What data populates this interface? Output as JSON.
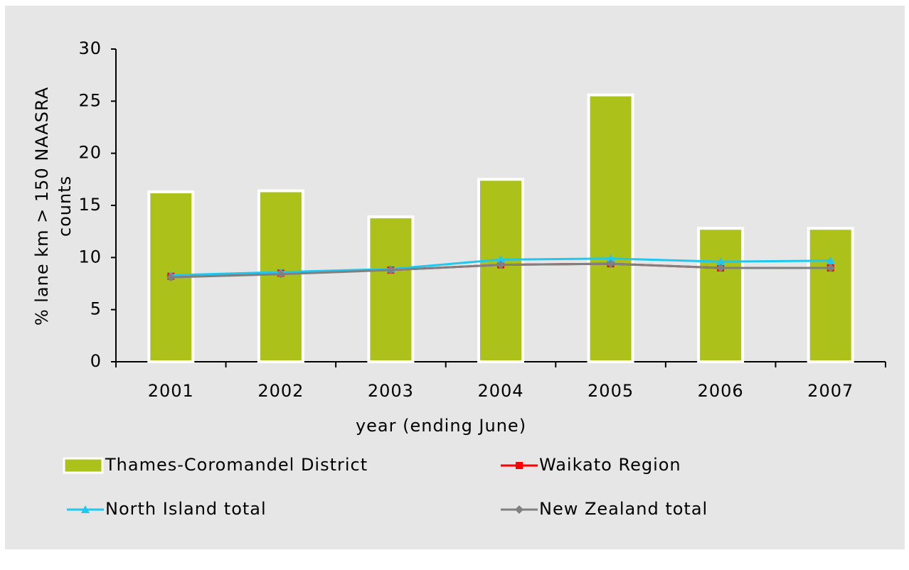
{
  "chart_data": {
    "type": "bar",
    "ylabel": [
      "% lane km > 150 NAASRA",
      "counts"
    ],
    "xlabel": "year (ending June)",
    "categories": [
      "2001",
      "2002",
      "2003",
      "2004",
      "2005",
      "2006",
      "2007"
    ],
    "series": [
      {
        "name": "Thames-Coromandel District",
        "type": "bar",
        "color": "#acc21a",
        "values": [
          16.3,
          16.4,
          13.9,
          17.5,
          25.6,
          12.8,
          12.8
        ]
      },
      {
        "name": "Waikato Region",
        "type": "line",
        "marker": "square",
        "color": "#ff0000",
        "values": [
          8.2,
          8.5,
          8.8,
          9.3,
          9.4,
          9.0,
          9.0
        ]
      },
      {
        "name": "North Island total",
        "type": "line",
        "marker": "triangle",
        "color": "#1ec8f0",
        "values": [
          8.3,
          8.6,
          8.9,
          9.8,
          9.9,
          9.6,
          9.7
        ]
      },
      {
        "name": "New Zealand total",
        "type": "line",
        "marker": "diamond",
        "color": "#808080",
        "values": [
          8.1,
          8.4,
          8.8,
          9.3,
          9.4,
          9.0,
          9.0
        ]
      }
    ],
    "ylim": [
      0,
      30
    ],
    "yticks": [
      0,
      5,
      10,
      15,
      20,
      25,
      30
    ],
    "grid": false
  }
}
